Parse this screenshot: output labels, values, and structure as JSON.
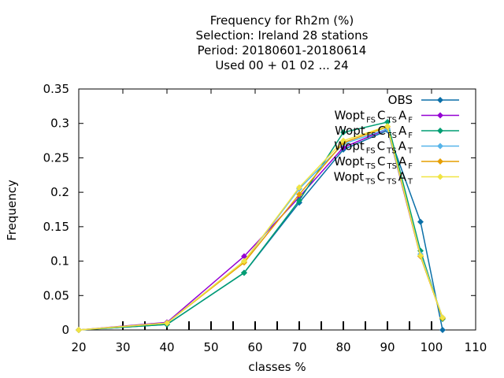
{
  "chart_data": {
    "type": "line",
    "title_lines": [
      "Frequency  for Rh2m (%)",
      "Selection: Ireland     28 stations",
      "Period: 20180601-20180614",
      "Used  00 + 01 02 ... 24"
    ],
    "xlabel": "classes %",
    "ylabel": "Frequency",
    "xlim": [
      20,
      110
    ],
    "ylim": [
      0,
      0.35
    ],
    "xticks": [
      "20",
      "30",
      "40",
      "50",
      "60",
      "70",
      "80",
      "90",
      "100",
      "110"
    ],
    "yticks": [
      "0",
      "0.05",
      "0.1",
      "0.15",
      "0.2",
      "0.25",
      "0.3",
      "0.35"
    ],
    "grid": false,
    "legend_position": "top-right",
    "x": [
      20,
      40,
      57.5,
      70,
      80,
      90,
      97.5,
      102.5
    ],
    "series": [
      {
        "name": "OBS",
        "legend_parts": [
          [
            "OBS",
            "n"
          ]
        ],
        "color": "#0a6fa8",
        "values": [
          0.0,
          0.008,
          0.083,
          0.185,
          0.262,
          0.29,
          0.157,
          0.0
        ]
      },
      {
        "name": "Wopt FS CTS AF",
        "legend_parts": [
          [
            "Wopt",
            "n"
          ],
          [
            "FS",
            "s"
          ],
          [
            "C",
            "n"
          ],
          [
            "TS",
            "s"
          ],
          [
            "A",
            "n"
          ],
          [
            "F",
            "s"
          ]
        ],
        "color": "#9400d3",
        "values": [
          0.0,
          0.011,
          0.107,
          0.193,
          0.265,
          0.292,
          0.107,
          0.018
        ]
      },
      {
        "name": "Wopt FS CFS AF",
        "legend_parts": [
          [
            "Wopt",
            "n"
          ],
          [
            "FS",
            "s"
          ],
          [
            "C",
            "n"
          ],
          [
            "FS",
            "s"
          ],
          [
            "A",
            "n"
          ],
          [
            "F",
            "s"
          ]
        ],
        "color": "#009e73",
        "values": [
          0.0,
          0.008,
          0.083,
          0.188,
          0.287,
          0.302,
          0.115,
          0.016
        ]
      },
      {
        "name": "Wopt FS CTS AT",
        "legend_parts": [
          [
            "Wopt",
            "n"
          ],
          [
            "FS",
            "s"
          ],
          [
            "C",
            "n"
          ],
          [
            "TS",
            "s"
          ],
          [
            "A",
            "n"
          ],
          [
            "T",
            "s"
          ]
        ],
        "color": "#56b4e9",
        "values": [
          0.0,
          0.01,
          0.1,
          0.205,
          0.27,
          0.292,
          0.11,
          0.018
        ]
      },
      {
        "name": "Wopt TS CTS AF",
        "legend_parts": [
          [
            "Wopt",
            "n"
          ],
          [
            "TS",
            "s"
          ],
          [
            "C",
            "n"
          ],
          [
            "TS",
            "s"
          ],
          [
            "A",
            "n"
          ],
          [
            "F",
            "s"
          ]
        ],
        "color": "#e69f00",
        "values": [
          0.0,
          0.01,
          0.098,
          0.197,
          0.272,
          0.295,
          0.107,
          0.017
        ]
      },
      {
        "name": "Wopt TS CTS AT",
        "legend_parts": [
          [
            "Wopt",
            "n"
          ],
          [
            "TS",
            "s"
          ],
          [
            "C",
            "n"
          ],
          [
            "TS",
            "s"
          ],
          [
            "A",
            "n"
          ],
          [
            "T",
            "s"
          ]
        ],
        "color": "#f0e442",
        "values": [
          0.0,
          0.01,
          0.1,
          0.207,
          0.275,
          0.296,
          0.108,
          0.018
        ]
      }
    ]
  }
}
